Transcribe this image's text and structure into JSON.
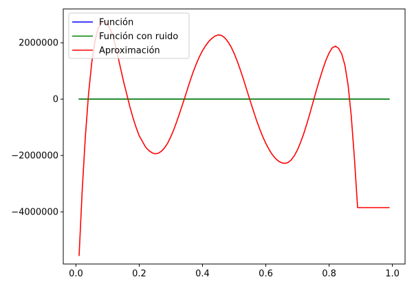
{
  "chart_data": {
    "type": "line",
    "title": "",
    "xlabel": "",
    "ylabel": "",
    "xlim": [
      -0.04,
      1.04
    ],
    "ylim": [
      -5850000,
      3200000
    ],
    "grid": false,
    "legend_position": "top-left",
    "x_ticks": [
      0.0,
      0.2,
      0.4,
      0.6,
      0.8,
      1.0
    ],
    "x_tick_labels": [
      "0.0",
      "0.2",
      "0.4",
      "0.6",
      "0.8",
      "1.0"
    ],
    "y_ticks": [
      -4000000,
      -2000000,
      0,
      2000000
    ],
    "y_tick_labels": [
      "−4000000",
      "−2000000",
      "0",
      "2000000"
    ],
    "series": [
      {
        "name": "Función",
        "color": "#0000ff",
        "x": [
          0.01,
          0.99
        ],
        "y": [
          0,
          0
        ]
      },
      {
        "name": "Función con ruido",
        "color": "#008000",
        "x": [
          0.01,
          0.99
        ],
        "y": [
          0,
          0
        ]
      },
      {
        "name": "Aproximación",
        "color": "#ff0000",
        "x": [
          0.01,
          0.02,
          0.03,
          0.04,
          0.05,
          0.06,
          0.07,
          0.08,
          0.09,
          0.1,
          0.11,
          0.12,
          0.13,
          0.14,
          0.15,
          0.16,
          0.17,
          0.18,
          0.19,
          0.2,
          0.21,
          0.22,
          0.23,
          0.24,
          0.25,
          0.26,
          0.27,
          0.28,
          0.29,
          0.3,
          0.31,
          0.32,
          0.33,
          0.34,
          0.35,
          0.36,
          0.37,
          0.38,
          0.39,
          0.4,
          0.41,
          0.42,
          0.43,
          0.44,
          0.45,
          0.46,
          0.47,
          0.48,
          0.49,
          0.5,
          0.51,
          0.52,
          0.53,
          0.54,
          0.55,
          0.56,
          0.57,
          0.58,
          0.59,
          0.6,
          0.61,
          0.62,
          0.63,
          0.64,
          0.65,
          0.66,
          0.67,
          0.68,
          0.69,
          0.7,
          0.71,
          0.72,
          0.73,
          0.74,
          0.75,
          0.76,
          0.77,
          0.78,
          0.79,
          0.8,
          0.81,
          0.82,
          0.83,
          0.84,
          0.85,
          0.86,
          0.87,
          0.88,
          0.89,
          0.9,
          0.91,
          0.92,
          0.93,
          0.94,
          0.95,
          0.96,
          0.97,
          0.98,
          0.99
        ],
        "y": [
          -5550000,
          -3200000,
          -1300000,
          200000,
          1300000,
          2050000,
          2500000,
          2700000,
          2750000,
          2650000,
          2450000,
          2100000,
          1650000,
          1150000,
          650000,
          200000,
          -250000,
          -650000,
          -1000000,
          -1300000,
          -1500000,
          -1700000,
          -1820000,
          -1900000,
          -1940000,
          -1920000,
          -1850000,
          -1730000,
          -1560000,
          -1330000,
          -1060000,
          -750000,
          -420000,
          -80000,
          270000,
          620000,
          950000,
          1240000,
          1500000,
          1720000,
          1900000,
          2050000,
          2160000,
          2240000,
          2280000,
          2260000,
          2180000,
          2040000,
          1860000,
          1620000,
          1340000,
          1020000,
          680000,
          320000,
          -40000,
          -390000,
          -730000,
          -1040000,
          -1320000,
          -1570000,
          -1780000,
          -1960000,
          -2100000,
          -2200000,
          -2260000,
          -2280000,
          -2250000,
          -2160000,
          -2010000,
          -1800000,
          -1530000,
          -1220000,
          -860000,
          -480000,
          -80000,
          320000,
          700000,
          1060000,
          1380000,
          1640000,
          1820000,
          1880000,
          1800000,
          1600000,
          1200000,
          500000,
          -600000,
          -2100000,
          -3850000,
          -3850000,
          -3850000,
          -3850000,
          -3850000,
          -3850000,
          -3850000,
          -3850000,
          -3850000,
          -3850000,
          -3850000
        ]
      }
    ]
  }
}
